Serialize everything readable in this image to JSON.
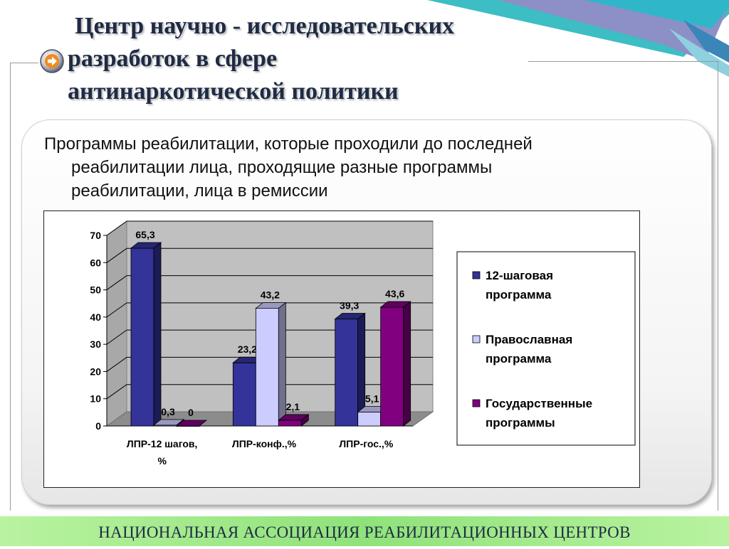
{
  "slide": {
    "title_lines": [
      "Центр научно - исследовательских",
      "разработок в сфере",
      "антинаркотической политики"
    ],
    "subtitle_lines": [
      "Программы реабилитации, которые проходили до последней",
      "реабилитации лица, проходящие разные программы",
      "реабилитации, лица в ремиссии"
    ],
    "footer": "НАЦИОНАЛЬНАЯ АССОЦИАЦИЯ РЕАБИЛИТАЦИОННЫХ ЦЕНТРОВ",
    "bullet_icon": "arrow-right-icon",
    "colors": {
      "title": "#1f2a44",
      "footer_bg": "#8fe27a",
      "deco_teal": "#3dbdc4",
      "deco_purple": "#8d8fc7"
    }
  },
  "chart_data": {
    "type": "bar",
    "categories": [
      "ЛПР-12 шагов, %",
      "ЛПР-конф.,%",
      "ЛПР-гос.,%"
    ],
    "series": [
      {
        "name": "12-шаговая программа",
        "values": [
          65.3,
          23.2,
          39.3
        ],
        "labels": [
          "65,3",
          "23,2",
          "39,3"
        ],
        "color": "#333399"
      },
      {
        "name": "Православная программа",
        "values": [
          0.3,
          43.2,
          5.1
        ],
        "labels": [
          "0,3",
          "43,2",
          "5,1"
        ],
        "color": "#ccccff"
      },
      {
        "name": "Государственные программы",
        "values": [
          0,
          2.1,
          43.6
        ],
        "labels": [
          "0",
          "2,1",
          "43,6"
        ],
        "color": "#800080"
      }
    ],
    "yticks": [
      "0",
      "10",
      "20",
      "30",
      "40",
      "50",
      "60",
      "70"
    ],
    "ylim": [
      0,
      70
    ],
    "grid": true,
    "legend_position": "right",
    "title": "",
    "xlabel": "",
    "ylabel": ""
  }
}
